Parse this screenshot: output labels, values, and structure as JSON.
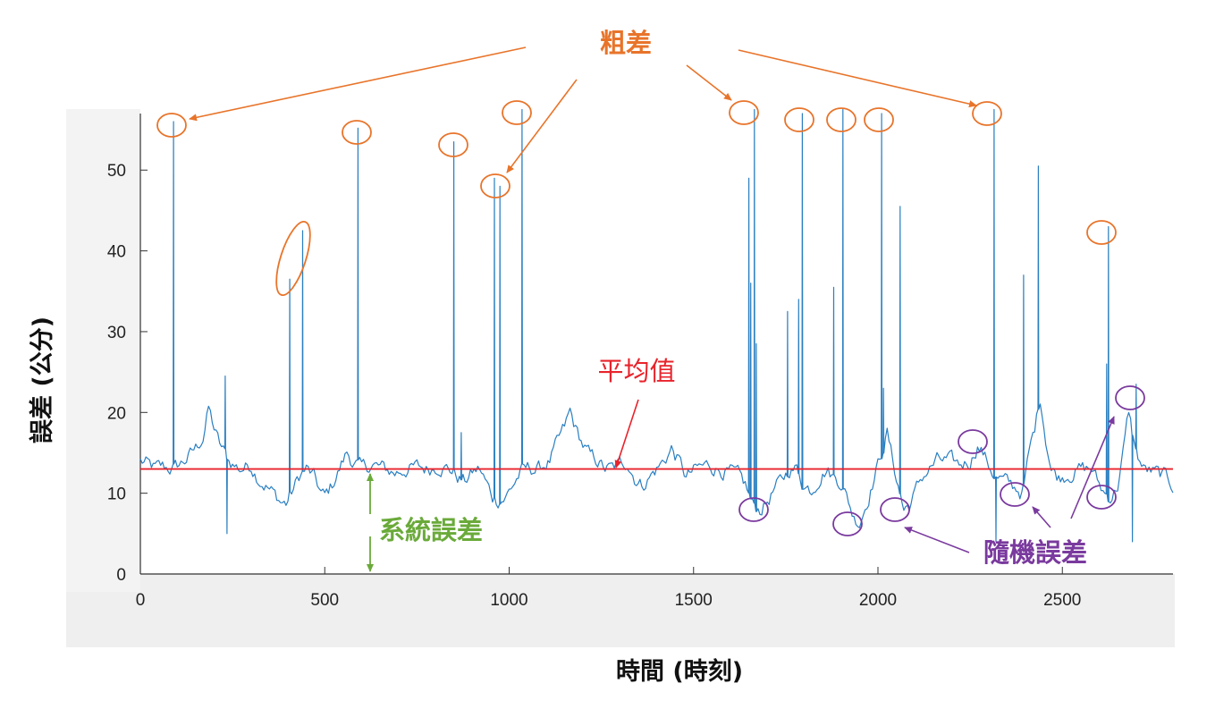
{
  "chart_data": {
    "type": "line",
    "title": "",
    "xlabel": "時間 (時刻)",
    "ylabel": "誤差 (公分)",
    "xlim": [
      0,
      2800
    ],
    "ylim": [
      0,
      57
    ],
    "xticks": [
      0,
      500,
      1000,
      1500,
      2000,
      2500
    ],
    "yticks": [
      0,
      10,
      20,
      30,
      40,
      50
    ],
    "grid": false,
    "mean_line": {
      "label": "平均值",
      "y": 13,
      "color": "#e8232b"
    },
    "series": [
      {
        "color": "#2a7fc1",
        "baseline": [
          [
            0,
            14
          ],
          [
            20,
            13.5
          ],
          [
            40,
            13
          ],
          [
            60,
            13.2
          ],
          [
            90,
            13
          ],
          [
            120,
            14
          ],
          [
            150,
            15.5
          ],
          [
            170,
            17
          ],
          [
            185,
            20.5
          ],
          [
            200,
            18
          ],
          [
            215,
            16
          ],
          [
            240,
            14
          ],
          [
            270,
            13
          ],
          [
            300,
            13.5
          ],
          [
            320,
            12
          ],
          [
            340,
            11
          ],
          [
            360,
            10
          ],
          [
            380,
            9
          ],
          [
            395,
            8.7
          ],
          [
            410,
            10
          ],
          [
            430,
            12
          ],
          [
            450,
            13
          ],
          [
            470,
            12
          ],
          [
            490,
            10
          ],
          [
            500,
            9.5
          ],
          [
            520,
            11
          ],
          [
            540,
            13
          ],
          [
            560,
            15
          ],
          [
            575,
            14
          ],
          [
            600,
            13
          ],
          [
            630,
            13.5
          ],
          [
            660,
            13
          ],
          [
            690,
            12.5
          ],
          [
            720,
            13
          ],
          [
            750,
            13.2
          ],
          [
            780,
            13
          ],
          [
            810,
            13.5
          ],
          [
            840,
            13
          ],
          [
            860,
            12
          ],
          [
            880,
            11.5
          ],
          [
            900,
            12.5
          ],
          [
            920,
            13
          ],
          [
            940,
            11
          ],
          [
            955,
            9.5
          ],
          [
            970,
            9.2
          ],
          [
            990,
            9.5
          ],
          [
            1010,
            11
          ],
          [
            1030,
            12.5
          ],
          [
            1050,
            13
          ],
          [
            1080,
            13
          ],
          [
            1110,
            14
          ],
          [
            1130,
            16
          ],
          [
            1150,
            18
          ],
          [
            1165,
            20
          ],
          [
            1180,
            18
          ],
          [
            1200,
            16
          ],
          [
            1220,
            14.5
          ],
          [
            1240,
            14
          ],
          [
            1260,
            13
          ],
          [
            1280,
            13
          ],
          [
            1300,
            13.5
          ],
          [
            1320,
            14
          ],
          [
            1340,
            12
          ],
          [
            1360,
            11
          ],
          [
            1380,
            12
          ],
          [
            1400,
            13
          ],
          [
            1420,
            14
          ],
          [
            1440,
            15.5
          ],
          [
            1460,
            14
          ],
          [
            1480,
            12
          ],
          [
            1510,
            13
          ],
          [
            1540,
            13.5
          ],
          [
            1570,
            13
          ],
          [
            1600,
            12.5
          ],
          [
            1620,
            12
          ],
          [
            1640,
            11
          ],
          [
            1660,
            8.5
          ],
          [
            1680,
            8
          ],
          [
            1700,
            9
          ],
          [
            1720,
            10.5
          ],
          [
            1740,
            11.5
          ],
          [
            1760,
            13
          ],
          [
            1780,
            13
          ],
          [
            1800,
            11
          ],
          [
            1820,
            10.5
          ],
          [
            1840,
            12
          ],
          [
            1860,
            13
          ],
          [
            1880,
            12
          ],
          [
            1900,
            11.5
          ],
          [
            1920,
            9
          ],
          [
            1935,
            7
          ],
          [
            1950,
            6.5
          ],
          [
            1970,
            9
          ],
          [
            1990,
            12
          ],
          [
            2010,
            15
          ],
          [
            2025,
            17.5
          ],
          [
            2040,
            14
          ],
          [
            2055,
            11
          ],
          [
            2070,
            8
          ],
          [
            2085,
            8.5
          ],
          [
            2100,
            10
          ],
          [
            2120,
            12
          ],
          [
            2140,
            13
          ],
          [
            2160,
            14
          ],
          [
            2190,
            14
          ],
          [
            2220,
            13.5
          ],
          [
            2250,
            14
          ],
          [
            2270,
            16
          ],
          [
            2285,
            15
          ],
          [
            2300,
            13.5
          ],
          [
            2320,
            12
          ],
          [
            2340,
            11.5
          ],
          [
            2360,
            11
          ],
          [
            2380,
            10.5
          ],
          [
            2390,
            10
          ],
          [
            2400,
            12
          ],
          [
            2410,
            15
          ],
          [
            2425,
            18
          ],
          [
            2440,
            22
          ],
          [
            2455,
            17
          ],
          [
            2470,
            13
          ],
          [
            2490,
            12
          ],
          [
            2520,
            12.5
          ],
          [
            2550,
            13
          ],
          [
            2580,
            13
          ],
          [
            2600,
            11
          ],
          [
            2615,
            10
          ],
          [
            2630,
            9.5
          ],
          [
            2650,
            11
          ],
          [
            2665,
            15
          ],
          [
            2680,
            20
          ],
          [
            2700,
            15
          ],
          [
            2720,
            13
          ],
          [
            2750,
            12.5
          ],
          [
            2780,
            12
          ],
          [
            2800,
            11
          ]
        ],
        "spikes": [
          [
            90,
            56
          ],
          [
            230,
            24.5
          ],
          [
            235,
            5
          ],
          [
            405,
            36.5
          ],
          [
            440,
            42.5
          ],
          [
            590,
            55.2
          ],
          [
            850,
            53.5
          ],
          [
            870,
            17.5
          ],
          [
            960,
            49
          ],
          [
            975,
            48
          ],
          [
            1035,
            57.5
          ],
          [
            1650,
            49
          ],
          [
            1655,
            36
          ],
          [
            1665,
            57.5
          ],
          [
            1670,
            28.5
          ],
          [
            1755,
            32.5
          ],
          [
            1785,
            34
          ],
          [
            1795,
            57
          ],
          [
            1880,
            35.5
          ],
          [
            1905,
            57.5
          ],
          [
            2010,
            57
          ],
          [
            2015,
            23
          ],
          [
            2060,
            45.5
          ],
          [
            2315,
            57.5
          ],
          [
            2320,
            4
          ],
          [
            2395,
            37
          ],
          [
            2435,
            50.5
          ],
          [
            2620,
            26
          ],
          [
            2625,
            43
          ],
          [
            2690,
            4
          ],
          [
            2700,
            23.5
          ]
        ]
      }
    ],
    "annotations": [
      {
        "label": "粗差",
        "color": "#e8742a"
      },
      {
        "label": "系統誤差",
        "color": "#6aaa3a"
      },
      {
        "label": "隨機誤差",
        "color": "#7a3a9e"
      }
    ]
  }
}
